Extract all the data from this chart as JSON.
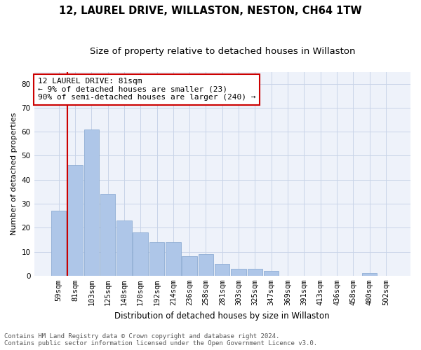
{
  "title": "12, LAUREL DRIVE, WILLASTON, NESTON, CH64 1TW",
  "subtitle": "Size of property relative to detached houses in Willaston",
  "xlabel": "Distribution of detached houses by size in Willaston",
  "ylabel": "Number of detached properties",
  "categories": [
    "59sqm",
    "81sqm",
    "103sqm",
    "125sqm",
    "148sqm",
    "170sqm",
    "192sqm",
    "214sqm",
    "236sqm",
    "258sqm",
    "281sqm",
    "303sqm",
    "325sqm",
    "347sqm",
    "369sqm",
    "391sqm",
    "413sqm",
    "436sqm",
    "458sqm",
    "480sqm",
    "502sqm"
  ],
  "values": [
    27,
    46,
    61,
    34,
    23,
    18,
    14,
    14,
    8,
    9,
    5,
    3,
    3,
    2,
    0,
    0,
    0,
    0,
    0,
    1,
    0
  ],
  "bar_color": "#aec6e8",
  "grid_color": "#c8d4e8",
  "bg_color": "#eef2fa",
  "vline_color": "#cc0000",
  "annotation_box_color": "#cc0000",
  "annotation_lines": [
    "12 LAUREL DRIVE: 81sqm",
    "← 9% of detached houses are smaller (23)",
    "90% of semi-detached houses are larger (240) →"
  ],
  "ylim": [
    0,
    85
  ],
  "yticks": [
    0,
    10,
    20,
    30,
    40,
    50,
    60,
    70,
    80
  ],
  "footer_line1": "Contains HM Land Registry data © Crown copyright and database right 2024.",
  "footer_line2": "Contains public sector information licensed under the Open Government Licence v3.0.",
  "title_fontsize": 10.5,
  "subtitle_fontsize": 9.5,
  "xlabel_fontsize": 8.5,
  "ylabel_fontsize": 8,
  "tick_fontsize": 7.5,
  "annotation_fontsize": 8,
  "footer_fontsize": 6.5
}
